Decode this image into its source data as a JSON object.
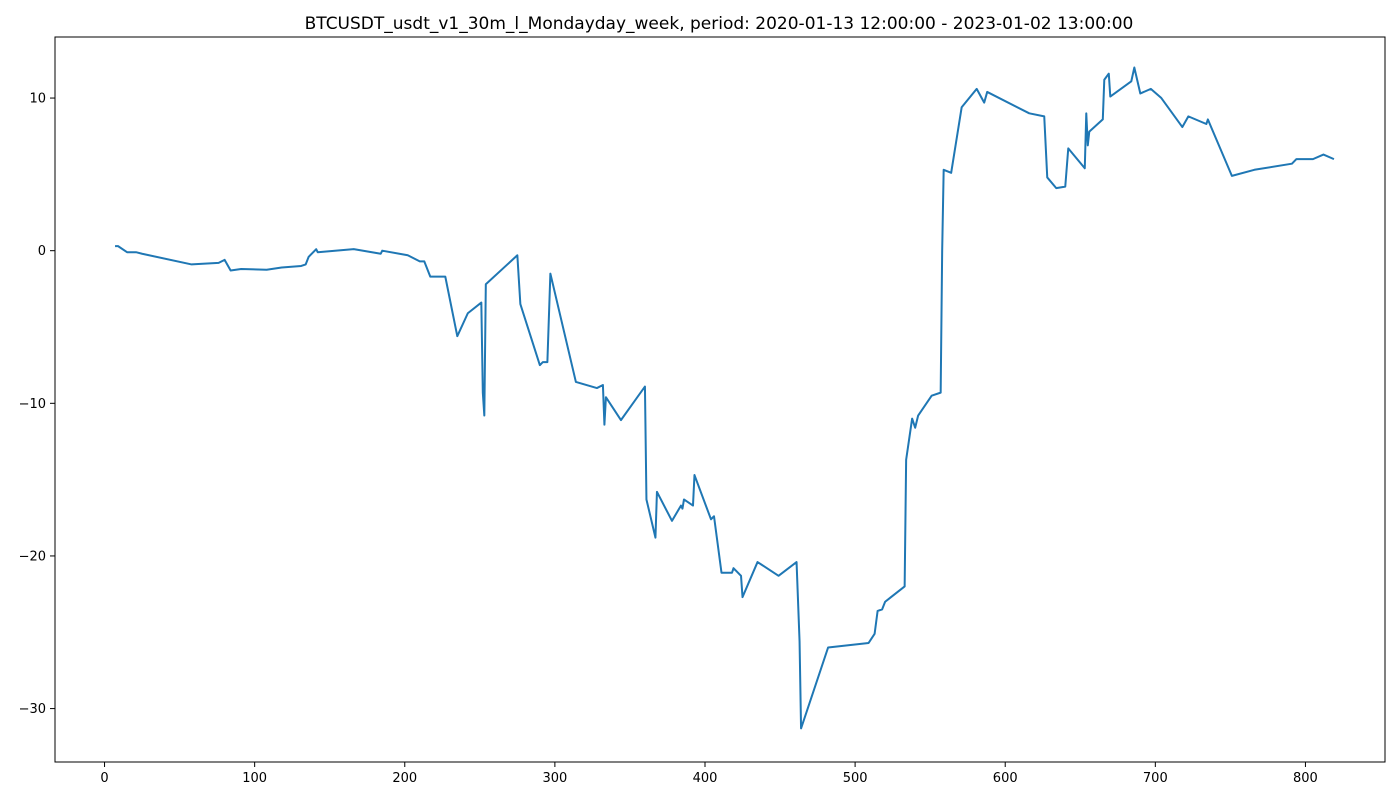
{
  "chart_data": {
    "type": "line",
    "title": "BTCUSDT_usdt_v1_30m_l_Mondayday_week, period: 2020-01-13 12:00:00 - 2023-01-02 13:00:00",
    "xlabel": "",
    "ylabel": "",
    "xlim": [
      -33,
      853
    ],
    "ylim": [
      -33.5,
      14
    ],
    "xticks": [
      0,
      100,
      200,
      300,
      400,
      500,
      600,
      700,
      800
    ],
    "yticks": [
      -30,
      -20,
      -10,
      0,
      10
    ],
    "grid": false,
    "legend": "none",
    "series": [
      {
        "color": "#1f77b4",
        "points": [
          [
            7,
            0.3
          ],
          [
            9,
            0.3
          ],
          [
            15,
            -0.1
          ],
          [
            21,
            -0.1
          ],
          [
            25,
            -0.2
          ],
          [
            58,
            -0.9
          ],
          [
            76,
            -0.8
          ],
          [
            80,
            -0.6
          ],
          [
            84,
            -1.3
          ],
          [
            91,
            -1.2
          ],
          [
            108,
            -1.25
          ],
          [
            118,
            -1.1
          ],
          [
            131,
            -1.0
          ],
          [
            134,
            -0.9
          ],
          [
            136,
            -0.4
          ],
          [
            141,
            0.1
          ],
          [
            142,
            -0.1
          ],
          [
            166,
            0.1
          ],
          [
            184,
            -0.2
          ],
          [
            185,
            0.0
          ],
          [
            202,
            -0.3
          ],
          [
            210,
            -0.7
          ],
          [
            213,
            -0.7
          ],
          [
            217,
            -1.7
          ],
          [
            227,
            -1.7
          ],
          [
            235,
            -5.6
          ],
          [
            242,
            -4.1
          ],
          [
            251,
            -3.4
          ],
          [
            252,
            -9.3
          ],
          [
            253,
            -10.8
          ],
          [
            254,
            -2.2
          ],
          [
            275,
            -0.3
          ],
          [
            277,
            -3.5
          ],
          [
            290,
            -7.5
          ],
          [
            292,
            -7.3
          ],
          [
            295,
            -7.3
          ],
          [
            297,
            -1.5
          ],
          [
            314,
            -8.6
          ],
          [
            328,
            -9.0
          ],
          [
            332,
            -8.8
          ],
          [
            333,
            -11.4
          ],
          [
            334,
            -9.6
          ],
          [
            344,
            -11.1
          ],
          [
            360,
            -8.9
          ],
          [
            361,
            -16.3
          ],
          [
            367,
            -18.8
          ],
          [
            368,
            -15.8
          ],
          [
            378,
            -17.7
          ],
          [
            384,
            -16.7
          ],
          [
            385,
            -16.9
          ],
          [
            386,
            -16.3
          ],
          [
            392,
            -16.7
          ],
          [
            393,
            -14.7
          ],
          [
            404,
            -17.6
          ],
          [
            406,
            -17.4
          ],
          [
            411,
            -21.1
          ],
          [
            418,
            -21.1
          ],
          [
            419,
            -20.8
          ],
          [
            424,
            -21.3
          ],
          [
            425,
            -22.7
          ],
          [
            435,
            -20.4
          ],
          [
            449,
            -21.3
          ],
          [
            461,
            -20.4
          ],
          [
            463,
            -25.6
          ],
          [
            464,
            -31.3
          ],
          [
            482,
            -26.0
          ],
          [
            509,
            -25.7
          ],
          [
            513,
            -25.1
          ],
          [
            515,
            -23.6
          ],
          [
            518,
            -23.5
          ],
          [
            520,
            -23.0
          ],
          [
            533,
            -22.0
          ],
          [
            534,
            -13.7
          ],
          [
            538,
            -11.0
          ],
          [
            540,
            -11.6
          ],
          [
            542,
            -10.8
          ],
          [
            551,
            -9.5
          ],
          [
            557,
            -9.3
          ],
          [
            558,
            0.0
          ],
          [
            559,
            5.3
          ],
          [
            564,
            5.1
          ],
          [
            571,
            9.4
          ],
          [
            581,
            10.6
          ],
          [
            586,
            9.7
          ],
          [
            588,
            10.4
          ],
          [
            616,
            9.0
          ],
          [
            626,
            8.8
          ],
          [
            628,
            4.8
          ],
          [
            634,
            4.1
          ],
          [
            640,
            4.2
          ],
          [
            642,
            6.7
          ],
          [
            653,
            5.4
          ],
          [
            654,
            9.0
          ],
          [
            655,
            6.9
          ],
          [
            656,
            7.8
          ],
          [
            665,
            8.6
          ],
          [
            666,
            11.2
          ],
          [
            669,
            11.6
          ],
          [
            670,
            10.1
          ],
          [
            684,
            11.1
          ],
          [
            686,
            12.0
          ],
          [
            690,
            10.3
          ],
          [
            697,
            10.6
          ],
          [
            704,
            10.0
          ],
          [
            718,
            8.1
          ],
          [
            722,
            8.8
          ],
          [
            734,
            8.3
          ],
          [
            735,
            8.6
          ],
          [
            751,
            4.9
          ],
          [
            766,
            5.3
          ],
          [
            791,
            5.7
          ],
          [
            794,
            6.0
          ],
          [
            805,
            6.0
          ],
          [
            812,
            6.3
          ],
          [
            819,
            6.0
          ]
        ]
      }
    ]
  }
}
